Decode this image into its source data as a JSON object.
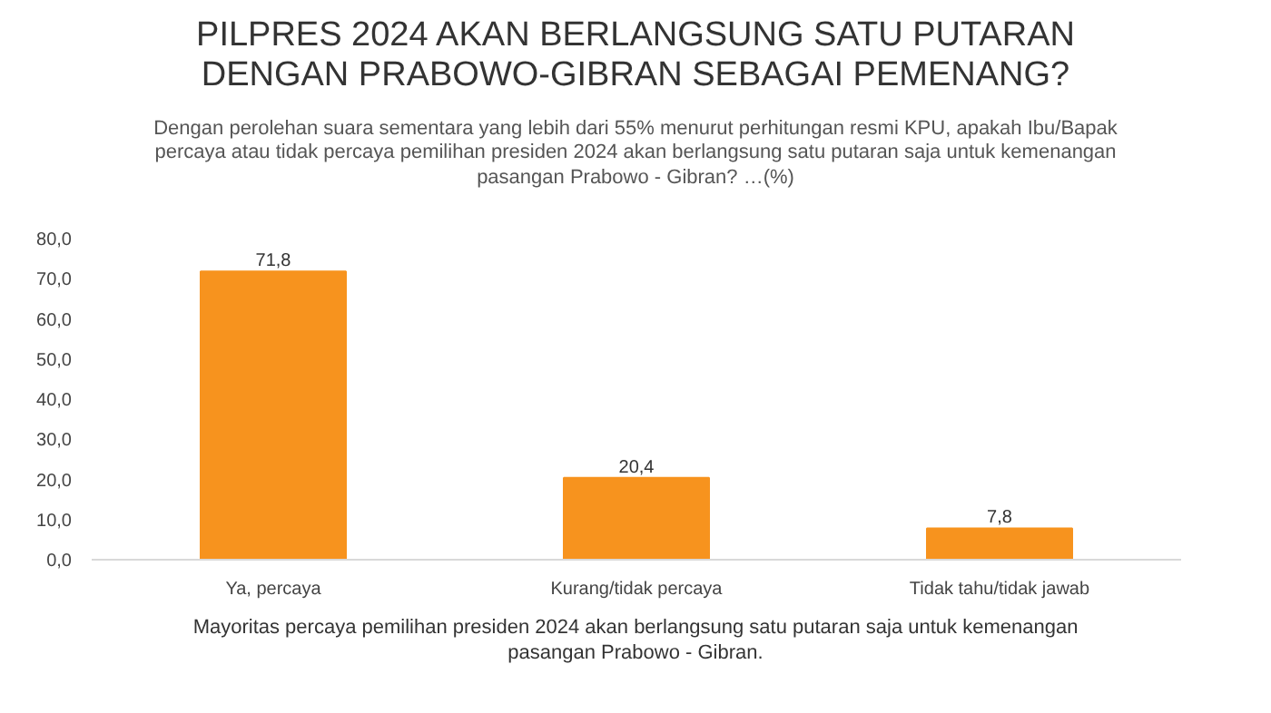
{
  "chart_data": {
    "type": "bar",
    "title": "PILPRES 2024 AKAN BERLANGSUNG SATU PUTARAN DENGAN PRABOWO-GIBRAN SEBAGAI PEMENANG?",
    "subtitle": "Dengan perolehan suara sementara yang lebih dari 55% menurut perhitungan resmi KPU, apakah Ibu/Bapak percaya atau tidak percaya pemilihan presiden 2024 akan berlangsung satu putaran saja untuk kemenangan pasangan Prabowo - Gibran? …(%)",
    "categories": [
      "Ya, percaya",
      "Kurang/tidak percaya",
      "Tidak tahu/tidak jawab"
    ],
    "values": [
      71.8,
      20.4,
      7.8
    ],
    "value_labels": [
      "71,8",
      "20,4",
      "7,8"
    ],
    "color": "#f7931e",
    "ylim": [
      0,
      80
    ],
    "yticks": [
      {
        "value": 0,
        "label": "0,0"
      },
      {
        "value": 10,
        "label": "10,0"
      },
      {
        "value": 20,
        "label": "20,0"
      },
      {
        "value": 30,
        "label": "30,0"
      },
      {
        "value": 40,
        "label": "40,0"
      },
      {
        "value": 50,
        "label": "50,0"
      },
      {
        "value": 60,
        "label": "60,0"
      },
      {
        "value": 70,
        "label": "70,0"
      },
      {
        "value": 80,
        "label": "80,0"
      }
    ],
    "grid": false,
    "annotations": [
      "Mayoritas percaya pemilihan presiden 2024 akan berlangsung satu putaran saja untuk kemenangan pasangan Prabowo - Gibran."
    ]
  }
}
